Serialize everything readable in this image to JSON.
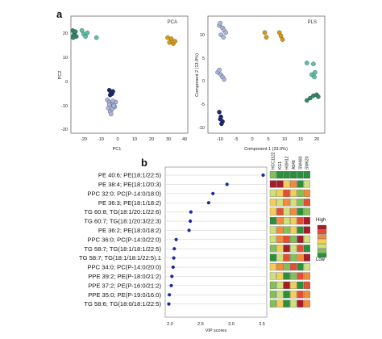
{
  "panels": {
    "a": {
      "letter": "a",
      "pca": {
        "title": "PCA",
        "xlabel": "PC1",
        "ylabel": "PC2",
        "xticks": [
          "-20",
          "-10",
          "0",
          "10",
          "20",
          "30",
          "40"
        ],
        "yticks": [
          "20",
          "10",
          "0",
          "-10",
          "-20"
        ]
      },
      "pls": {
        "title": "PLS",
        "xlabel": "Component 1 (33.9%)",
        "ylabel": "Component 2 (13.9%)",
        "xticks": [
          "-10",
          "-5",
          "0",
          "5",
          "10",
          "15",
          "20"
        ],
        "yticks": [
          "10",
          "5",
          "0",
          "-5",
          "-10"
        ]
      }
    },
    "b": {
      "letter": "b",
      "xlabel": "VIP scores",
      "xticks": [
        "2.0",
        "2.5",
        "3.0",
        "3.5"
      ],
      "cell_lines": [
        "HCC1122",
        "KG1",
        "HUH12",
        "A549",
        "SW480",
        "SW620"
      ],
      "legend_high": "High",
      "legend_low": "Low"
    }
  },
  "colors": {
    "green": "#2f8a6c",
    "teal": "#57c3a9",
    "gold": "#d99a10",
    "navy": "#1a2570",
    "lavender": "#a9b6e0",
    "heat": [
      "#a51d2a",
      "#e04f36",
      "#f08c3c",
      "#f4cf57",
      "#cfe07c",
      "#84c05a",
      "#2d8e3c"
    ]
  },
  "chart_data": [
    {
      "type": "scatter",
      "title": "PCA",
      "xlabel": "PC1",
      "ylabel": "PC2",
      "xlim": [
        -22,
        42
      ],
      "ylim": [
        -24,
        25
      ],
      "series": [
        {
          "color": "green",
          "x": [
            -21,
            -20,
            -20.5,
            -19,
            -19.5,
            -20.8
          ],
          "y": [
            19,
            18,
            17,
            16.5,
            18.5,
            16
          ]
        },
        {
          "color": "teal",
          "x": [
            -16,
            -15,
            -13,
            -14,
            -8
          ],
          "y": [
            19,
            17.5,
            18,
            16.5,
            16
          ]
        },
        {
          "color": "gold",
          "x": [
            31,
            32,
            33,
            34,
            35
          ],
          "y": [
            16,
            14,
            15.5,
            13.5,
            14.5
          ]
        },
        {
          "color": "navy",
          "x": [
            -1,
            0,
            1,
            -0.5,
            0.5
          ],
          "y": [
            -6,
            -7,
            -6.5,
            -8,
            -7.5
          ]
        },
        {
          "color": "lavender",
          "x": [
            -2,
            -1,
            0,
            1,
            2,
            -1.5,
            0.5,
            1.5,
            -0.5,
            0,
            2.5,
            1,
            -1
          ],
          "y": [
            -10,
            -11,
            -12,
            -11.5,
            -13,
            -13.5,
            -14,
            -12.5,
            -15,
            -16,
            -11,
            -10.5,
            -12
          ]
        }
      ]
    },
    {
      "type": "scatter",
      "title": "PLS",
      "xlabel": "Component 1 (33.9%)",
      "ylabel": "Component 2 (13.9%)",
      "xlim": [
        -13,
        23
      ],
      "ylim": [
        -13,
        12
      ],
      "series": [
        {
          "color": "lavender",
          "x": [
            -9.5,
            -8.5,
            -9,
            -8,
            -7.5,
            -9.2,
            -8.2
          ],
          "y": [
            10,
            9.5,
            8,
            9,
            8.5,
            10.5,
            7.5
          ]
        },
        {
          "color": "lavender",
          "x": [
            -10,
            -9,
            -8.5,
            -9.5,
            -8
          ],
          "y": [
            0,
            -0.5,
            -1,
            0.5,
            -1.5
          ]
        },
        {
          "color": "navy",
          "x": [
            -9.5,
            -9,
            -8.5,
            -9.2,
            -8.8
          ],
          "y": [
            -8.5,
            -9.5,
            -10.5,
            -10,
            -11
          ]
        },
        {
          "color": "gold",
          "x": [
            4.5,
            5,
            9,
            9.5,
            10
          ],
          "y": [
            8.5,
            7.5,
            8.5,
            7.8,
            7
          ]
        },
        {
          "color": "teal",
          "x": [
            17.5,
            19.5,
            20,
            19,
            19.8
          ],
          "y": [
            2,
            1.8,
            0,
            -0.5,
            -1
          ]
        },
        {
          "color": "green",
          "x": [
            17.5,
            18.5,
            19.5,
            20.5,
            21
          ],
          "y": [
            -6,
            -5.5,
            -5,
            -4.8,
            -5.2
          ]
        }
      ]
    },
    {
      "type": "scatter",
      "title": "",
      "xlabel": "VIP scores",
      "xlim": [
        1.9,
        3.6
      ],
      "categories": [
        "PE 40:6; PE(18:1/22:5)",
        "PE 38:4; PE(18:1/20:3)",
        "PPC 32:0; PC(P-14:0/18:0)",
        "PE 36:3; PE(18:1/18:2)",
        "TG 60:8; TG(18:1/20:1/22:6)",
        "TG 60:7; TG(18:1/20:3/22:3)",
        "PE 36:2; PE(18:0/18:2)",
        "PPC 36:0; PC(P-14:0/22:0)",
        "TG 58:7; TG(18:1/18:1/22:5)",
        "TG 58:7; TG(18:1/18:1/22:5).1",
        "PPC 34:0; PC(P-14:0/20:0)",
        "PPE 39:2; PE(P-18:0/21:2)",
        "PPE 37:2; PE(P-16:0/21:2)",
        "PPE 35:0; PE(P-19:0/16:0)",
        "TG 58:6; TG(18:0/18:1/22:5)"
      ],
      "values": [
        3.52,
        2.93,
        2.7,
        2.63,
        2.34,
        2.33,
        2.31,
        2.1,
        2.07,
        2.06,
        2.05,
        2.03,
        2.02,
        1.99,
        1.98
      ]
    },
    {
      "type": "heatmap",
      "title": "",
      "columns": [
        "HCC1122",
        "KG1",
        "HUH12",
        "A549",
        "SW480",
        "SW620"
      ],
      "scale": "1 = low, 7 = high",
      "rows": [
        [
          2,
          1,
          1,
          1,
          1,
          1
        ],
        [
          7,
          7,
          4,
          5,
          1,
          3
        ],
        [
          3,
          4,
          6,
          4,
          2,
          5
        ],
        [
          4,
          3,
          5,
          3,
          2,
          6
        ],
        [
          4,
          6,
          3,
          5,
          1,
          2
        ],
        [
          1,
          5,
          3,
          4,
          6,
          7
        ],
        [
          3,
          5,
          2,
          4,
          1,
          7
        ],
        [
          3,
          5,
          6,
          2,
          7,
          3
        ],
        [
          2,
          4,
          7,
          3,
          6,
          1
        ],
        [
          1,
          3,
          6,
          2,
          5,
          7
        ],
        [
          4,
          5,
          2,
          6,
          1,
          3
        ],
        [
          3,
          4,
          1,
          2,
          6,
          5
        ],
        [
          2,
          3,
          7,
          4,
          1,
          6
        ],
        [
          2,
          3,
          1,
          4,
          6,
          5
        ],
        [
          2,
          4,
          1,
          3,
          7,
          5
        ]
      ]
    }
  ]
}
